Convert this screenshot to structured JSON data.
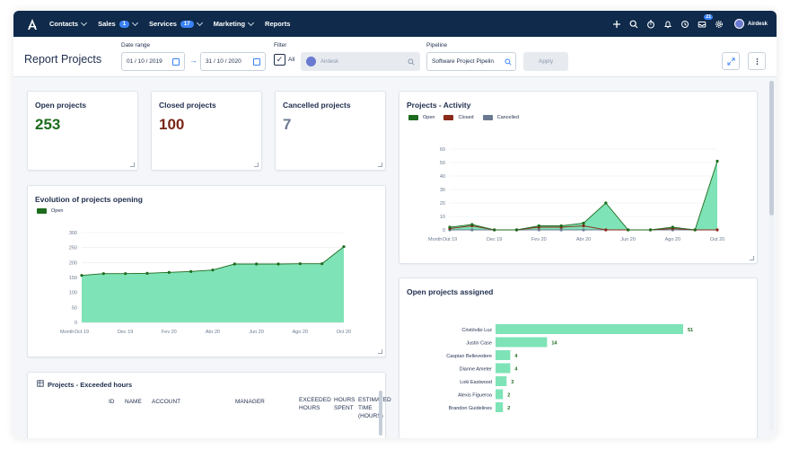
{
  "nav": {
    "items": [
      {
        "label": "Contacts",
        "badge": null,
        "chevron": true
      },
      {
        "label": "Sales",
        "badge": "1",
        "chevron": true
      },
      {
        "label": "Services",
        "badge": "17",
        "chevron": true
      },
      {
        "label": "Marketing",
        "badge": null,
        "chevron": true
      },
      {
        "label": "Reports",
        "badge": null,
        "chevron": false
      }
    ],
    "notification_badge": "21",
    "user_name": "Airdesk"
  },
  "header": {
    "title": "Report Projects",
    "date_range_label": "Date range",
    "date_from": "01 / 10 / 2019",
    "date_to": "31 / 10 / 2020",
    "filter_label": "Filter",
    "all_label": "All",
    "filter_value": "Airdesk",
    "pipeline_label": "Pipeline",
    "pipeline_value": "Software Project Pipelin",
    "apply_label": "Apply"
  },
  "kpis": {
    "open": {
      "label": "Open projects",
      "value": "253",
      "color": "#1d6b1d"
    },
    "closed": {
      "label": "Closed projects",
      "value": "100",
      "color": "#7a2618"
    },
    "cancelled": {
      "label": "Cancelled projects",
      "value": "7",
      "color": "#6b7a90"
    }
  },
  "colors": {
    "open_fill": "#7ee3b6",
    "open_line": "#1d6b1d",
    "closed": "#8b2a1a",
    "cancelled": "#6b7a90",
    "nav_bg": "#0f2a4a",
    "accent": "#3b82f6"
  },
  "evolution": {
    "title": "Evolution of projects opening",
    "legend": [
      "Open"
    ]
  },
  "activity": {
    "title": "Projects - Activity",
    "legend": [
      "Open",
      "Closed",
      "Cancelled"
    ]
  },
  "assigned": {
    "title": "Open projects assigned"
  },
  "exceeded": {
    "title": "Projects - Exceeded hours",
    "columns": [
      "ID",
      "NAME",
      "ACCOUNT",
      "MANAGER",
      "EXCEEDED HOURS",
      "HOURS SPENT",
      "ESTIMATED TIME (HOURS)"
    ]
  },
  "chart_data": [
    {
      "type": "area",
      "title": "Evolution of projects opening",
      "xlabel": "Month",
      "ylim": [
        0,
        300
      ],
      "yticks": [
        0,
        50,
        100,
        150,
        200,
        250,
        300
      ],
      "x_tick_labels": [
        "Oct 19",
        "Dec 19",
        "Fev 20",
        "Abr 20",
        "Jun 20",
        "Ago 20",
        "Oct 20"
      ],
      "series": [
        {
          "name": "Open",
          "values": [
            157,
            163,
            163,
            164,
            167,
            170,
            175,
            195,
            195,
            195,
            196,
            196,
            253
          ]
        }
      ]
    },
    {
      "type": "area",
      "title": "Projects - Activity",
      "xlabel": "Month",
      "ylim": [
        0,
        60
      ],
      "yticks": [
        0,
        10,
        20,
        30,
        40,
        50,
        60
      ],
      "x_tick_labels": [
        "Out 19",
        "Dec 19",
        "Fev 20",
        "Abr 20",
        "Jun 20",
        "Ago 20",
        "Out 20"
      ],
      "series": [
        {
          "name": "Open",
          "values": [
            2,
            4,
            0,
            0,
            3,
            3,
            5,
            20,
            0,
            0,
            2,
            0,
            51
          ]
        },
        {
          "name": "Closed",
          "values": [
            1,
            3,
            0,
            0,
            2,
            2,
            3,
            0,
            0,
            0,
            1,
            0,
            0
          ]
        },
        {
          "name": "Cancelled",
          "values": [
            0,
            0,
            0,
            0,
            0,
            0,
            0,
            0,
            0,
            0,
            0,
            0,
            0
          ]
        }
      ]
    },
    {
      "type": "bar",
      "title": "Open projects assigned",
      "categories": [
        "Cristóvão Luz",
        "Justin Case",
        "Caspian Bellevedere",
        "Dianne Ameter",
        "Loki Eastwood",
        "Alexis Figueroa",
        "Brandon Guidelines"
      ],
      "values": [
        51,
        14,
        4,
        4,
        3,
        2,
        2
      ]
    }
  ]
}
